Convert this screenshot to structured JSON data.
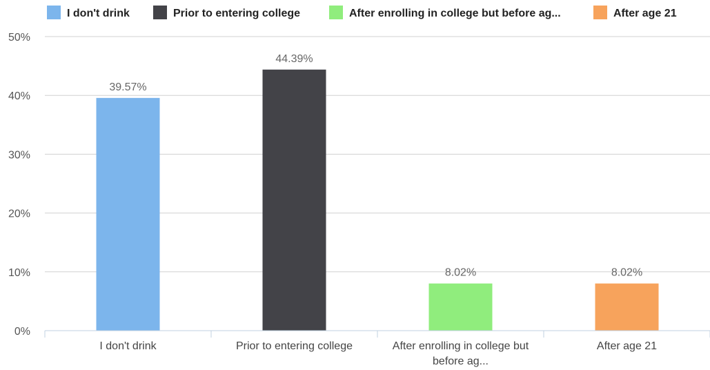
{
  "chart_data": {
    "type": "bar",
    "categories": [
      [
        "I don't drink"
      ],
      [
        "Prior to entering college"
      ],
      [
        "After enrolling in college but",
        "before ag..."
      ],
      [
        "After age 21"
      ]
    ],
    "values": [
      39.57,
      44.39,
      8.02,
      8.02
    ],
    "value_labels": [
      "39.57%",
      "44.39%",
      "8.02%",
      "8.02%"
    ],
    "colors": [
      "#7cb5ec",
      "#434348",
      "#90ed7d",
      "#f7a35c"
    ],
    "legend": [
      "I don't drink",
      "Prior to entering college",
      "After enrolling in college but before ag...",
      "After age 21"
    ],
    "legend_position": "top",
    "yticks": [
      "0%",
      "10%",
      "20%",
      "30%",
      "40%",
      "50%"
    ],
    "ytick_values": [
      0,
      10,
      20,
      30,
      40,
      50
    ],
    "ylim": [
      0,
      50
    ],
    "grid": true
  }
}
